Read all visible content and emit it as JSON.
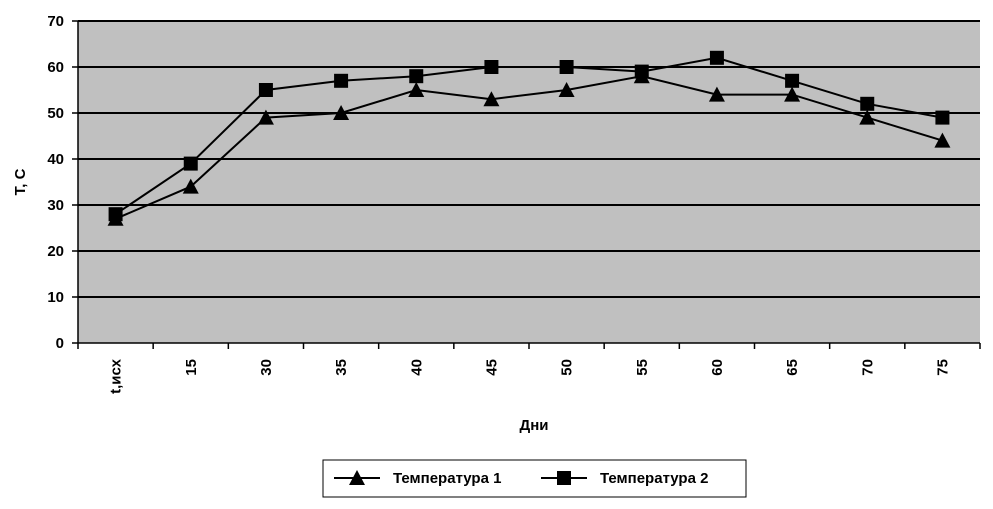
{
  "chart_data": {
    "type": "line",
    "title": "",
    "xlabel": "Дни",
    "ylabel": "Т, С",
    "categories": [
      "t,исх",
      "15",
      "30",
      "35",
      "40",
      "45",
      "50",
      "55",
      "60",
      "65",
      "70",
      "75"
    ],
    "ylim": [
      0,
      70
    ],
    "yticks": [
      0,
      10,
      20,
      30,
      40,
      50,
      60,
      70
    ],
    "grid": true,
    "plot_background": "#c0c0c0",
    "legend_position": "bottom",
    "series": [
      {
        "name": "Температура 1",
        "marker": "triangle",
        "color": "#000000",
        "values": [
          27,
          34,
          49,
          50,
          55,
          53,
          55,
          58,
          54,
          54,
          49,
          44
        ]
      },
      {
        "name": "Температура 2",
        "marker": "square",
        "color": "#000000",
        "values": [
          28,
          39,
          55,
          57,
          58,
          60,
          60,
          59,
          62,
          57,
          52,
          49
        ]
      }
    ]
  }
}
